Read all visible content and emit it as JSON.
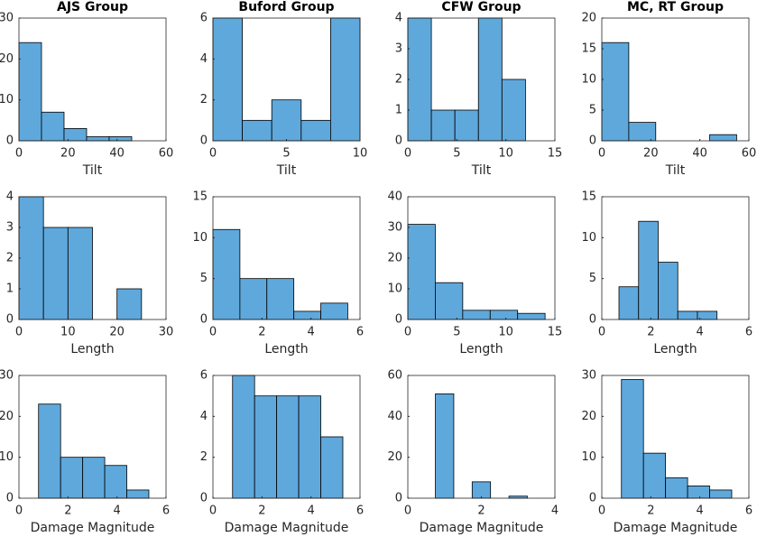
{
  "chart_data": [
    {
      "type": "histogram",
      "title": "AJS Group",
      "xlabel": "Tilt",
      "bins": [
        0,
        9.2,
        18.4,
        27.6,
        36.8,
        46
      ],
      "values": [
        24,
        7,
        3,
        1,
        1
      ],
      "xlim": [
        0,
        60
      ],
      "ylim": [
        0,
        30
      ],
      "xticks": [
        0,
        20,
        40,
        60
      ],
      "yticks": [
        0,
        10,
        20,
        30
      ],
      "color": "#5fa8dc"
    },
    {
      "type": "histogram",
      "title": "Buford Group",
      "xlabel": "Tilt",
      "bins": [
        0,
        2,
        4,
        6,
        8,
        10
      ],
      "values": [
        6,
        1,
        2,
        1,
        6
      ],
      "xlim": [
        0,
        10
      ],
      "ylim": [
        0,
        6
      ],
      "xticks": [
        0,
        5,
        10
      ],
      "yticks": [
        0,
        2,
        4,
        6
      ],
      "color": "#5fa8dc"
    },
    {
      "type": "histogram",
      "title": "CFW Group",
      "xlabel": "Tilt",
      "bins": [
        0,
        2.4,
        4.8,
        7.2,
        9.6,
        12
      ],
      "values": [
        4,
        1,
        1,
        4,
        2
      ],
      "xlim": [
        0,
        15
      ],
      "ylim": [
        0,
        4
      ],
      "xticks": [
        0,
        5,
        10,
        15
      ],
      "yticks": [
        0,
        1,
        2,
        3,
        4
      ],
      "color": "#5fa8dc"
    },
    {
      "type": "histogram",
      "title": "MC, RT Group",
      "xlabel": "Tilt",
      "bins": [
        0,
        11,
        22,
        33,
        44,
        55
      ],
      "values": [
        16,
        3,
        0,
        0,
        1
      ],
      "xlim": [
        0,
        60
      ],
      "ylim": [
        0,
        20
      ],
      "xticks": [
        0,
        20,
        40,
        60
      ],
      "yticks": [
        0,
        5,
        10,
        15,
        20
      ],
      "color": "#5fa8dc"
    },
    {
      "type": "histogram",
      "xlabel": "Length",
      "bins": [
        0,
        5,
        10,
        15,
        20,
        25
      ],
      "values": [
        4,
        3,
        3,
        0,
        1
      ],
      "xlim": [
        0,
        30
      ],
      "ylim": [
        0,
        4
      ],
      "xticks": [
        0,
        10,
        20,
        30
      ],
      "yticks": [
        0,
        1,
        2,
        3,
        4
      ],
      "color": "#5fa8dc"
    },
    {
      "type": "histogram",
      "xlabel": "Length",
      "bins": [
        0,
        1.1,
        2.2,
        3.3,
        4.4,
        5.5
      ],
      "values": [
        11,
        5,
        5,
        1,
        2
      ],
      "xlim": [
        0,
        6
      ],
      "ylim": [
        0,
        15
      ],
      "xticks": [
        0,
        2,
        4,
        6
      ],
      "yticks": [
        0,
        5,
        10,
        15
      ],
      "color": "#5fa8dc"
    },
    {
      "type": "histogram",
      "xlabel": "Length",
      "bins": [
        0,
        2.8,
        5.6,
        8.4,
        11.2,
        14
      ],
      "values": [
        31,
        12,
        3,
        3,
        2
      ],
      "xlim": [
        0,
        15
      ],
      "ylim": [
        0,
        40
      ],
      "xticks": [
        0,
        5,
        10,
        15
      ],
      "yticks": [
        0,
        10,
        20,
        30,
        40
      ],
      "color": "#5fa8dc"
    },
    {
      "type": "histogram",
      "xlabel": "Length",
      "bins": [
        0.7,
        1.5,
        2.3,
        3.1,
        3.9,
        4.7
      ],
      "values": [
        4,
        12,
        7,
        1,
        1
      ],
      "xlim": [
        0,
        6
      ],
      "ylim": [
        0,
        15
      ],
      "xticks": [
        0,
        2,
        4,
        6
      ],
      "yticks": [
        0,
        5,
        10,
        15
      ],
      "color": "#5fa8dc"
    },
    {
      "type": "histogram",
      "xlabel": "Damage Magnitude",
      "bins": [
        0.8,
        1.7,
        2.6,
        3.5,
        4.4,
        5.3
      ],
      "values": [
        23,
        10,
        10,
        8,
        2
      ],
      "xlim": [
        0,
        6
      ],
      "ylim": [
        0,
        30
      ],
      "xticks": [
        0,
        2,
        4,
        6
      ],
      "yticks": [
        0,
        10,
        20,
        30
      ],
      "color": "#5fa8dc"
    },
    {
      "type": "histogram",
      "xlabel": "Damage Magnitude",
      "bins": [
        0.8,
        1.7,
        2.6,
        3.5,
        4.4,
        5.3
      ],
      "values": [
        6,
        5,
        5,
        5,
        3
      ],
      "xlim": [
        0,
        6
      ],
      "ylim": [
        0,
        6
      ],
      "xticks": [
        0,
        2,
        4,
        6
      ],
      "yticks": [
        0,
        2,
        4,
        6
      ],
      "color": "#5fa8dc"
    },
    {
      "type": "histogram",
      "xlabel": "Damage Magnitude",
      "bins": [
        0.75,
        1.25,
        1.75,
        2.25,
        2.75,
        3.25
      ],
      "values": [
        51,
        0,
        8,
        0,
        1
      ],
      "xlim": [
        0,
        4
      ],
      "ylim": [
        0,
        60
      ],
      "xticks": [
        0,
        2,
        4
      ],
      "yticks": [
        0,
        20,
        40,
        60
      ],
      "color": "#5fa8dc"
    },
    {
      "type": "histogram",
      "xlabel": "Damage Magnitude",
      "bins": [
        0.8,
        1.7,
        2.6,
        3.5,
        4.4,
        5.3
      ],
      "values": [
        29,
        11,
        5,
        3,
        2
      ],
      "xlim": [
        0,
        6
      ],
      "ylim": [
        0,
        30
      ],
      "xticks": [
        0,
        2,
        4,
        6
      ],
      "yticks": [
        0,
        10,
        20,
        30
      ],
      "color": "#5fa8dc"
    }
  ]
}
